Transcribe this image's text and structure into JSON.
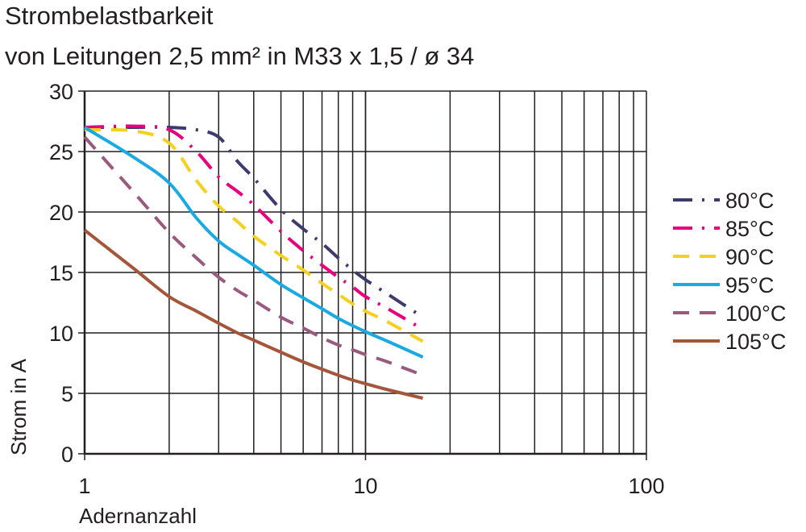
{
  "chart_data": {
    "type": "line",
    "title": "Strombelastbarkeit",
    "subtitle": "von Leitungen 2,5 mm² in M33 x 1,5 / ø 34",
    "xlabel": "Adernanzahl",
    "ylabel": "Strom in A",
    "x_scale": "log",
    "xlim": [
      1,
      100
    ],
    "ylim": [
      0,
      30
    ],
    "x_ticks": [
      "1",
      "10",
      "100"
    ],
    "y_ticks": [
      "0",
      "5",
      "10",
      "15",
      "20",
      "25",
      "30"
    ],
    "grid": true,
    "legend_position": "right",
    "series": [
      {
        "name": "80°C",
        "color": "#3d3b6e",
        "dash": "dash-dot",
        "x": [
          1,
          1.5,
          2,
          2.5,
          3,
          3.5,
          4,
          5,
          6,
          7,
          8,
          9,
          10,
          12,
          16
        ],
        "y": [
          27,
          27,
          27,
          26.8,
          26.2,
          24.2,
          22.8,
          20.2,
          18.6,
          17.4,
          16.2,
          15.2,
          14.4,
          13.2,
          11.3
        ]
      },
      {
        "name": "85°C",
        "color": "#e6007e",
        "dash": "dash-dot",
        "x": [
          1,
          1.5,
          2,
          2.5,
          3,
          3.5,
          4,
          5,
          6,
          7,
          8,
          9,
          10,
          12,
          16
        ],
        "y": [
          27,
          27.1,
          26.8,
          25,
          22.9,
          21.7,
          20.6,
          18.4,
          16.8,
          15.6,
          14.6,
          13.8,
          13,
          12,
          10.3
        ]
      },
      {
        "name": "90°C",
        "color": "#f5d01e",
        "dash": "dash",
        "x": [
          1,
          1.5,
          2,
          2.5,
          3,
          3.5,
          4,
          5,
          6,
          7,
          8,
          9,
          10,
          12,
          16
        ],
        "y": [
          26.8,
          26.7,
          25.7,
          22.6,
          20.5,
          19.2,
          18,
          16.4,
          15.2,
          14.1,
          13.2,
          12.4,
          11.8,
          10.9,
          9.3
        ]
      },
      {
        "name": "95°C",
        "color": "#1ba9e1",
        "dash": "solid",
        "x": [
          1,
          1.5,
          2,
          2.5,
          3,
          3.5,
          4,
          5,
          6,
          7,
          8,
          9,
          10,
          12,
          16
        ],
        "y": [
          27,
          24.5,
          22.4,
          19.5,
          17.6,
          16.5,
          15.6,
          14,
          12.9,
          12,
          11.2,
          10.6,
          10.1,
          9.3,
          8
        ]
      },
      {
        "name": "100°C",
        "color": "#9a5a7e",
        "dash": "dash",
        "x": [
          1,
          1.5,
          2,
          2.5,
          3,
          3.5,
          4,
          5,
          6,
          7,
          8,
          9,
          10,
          12,
          16
        ],
        "y": [
          26.2,
          21.6,
          18.3,
          16.2,
          14.6,
          13.5,
          12.7,
          11.3,
          10.4,
          9.6,
          9,
          8.6,
          8.2,
          7.6,
          6.5
        ]
      },
      {
        "name": "105°C",
        "color": "#a5553a",
        "dash": "solid",
        "x": [
          1,
          1.5,
          2,
          2.5,
          3,
          3.5,
          4,
          5,
          6,
          7,
          8,
          9,
          10,
          12,
          16
        ],
        "y": [
          18.5,
          15.3,
          13,
          11.8,
          10.8,
          10,
          9.4,
          8.4,
          7.6,
          7,
          6.5,
          6.1,
          5.8,
          5.3,
          4.6
        ]
      }
    ]
  }
}
